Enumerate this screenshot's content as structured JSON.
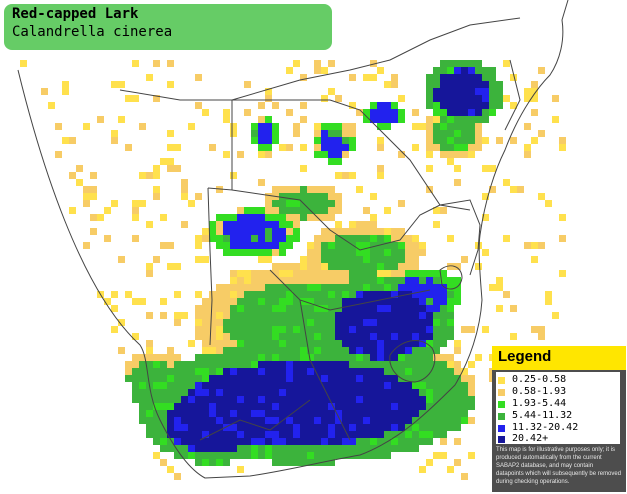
{
  "title": {
    "common_name": "Red-capped Lark",
    "scientific_name": "Calandrella cinerea"
  },
  "legend": {
    "heading": "Legend",
    "items": [
      {
        "label": "0.25-0.58",
        "color": "#ffe14d"
      },
      {
        "label": "0.58-1.93",
        "color": "#f7cc66"
      },
      {
        "label": "1.93-5.44",
        "color": "#33dd22"
      },
      {
        "label": "5.44-11.32",
        "color": "#3cb33c"
      },
      {
        "label": "11.32-20.42",
        "color": "#2222ee"
      },
      {
        "label": "20.42+",
        "color": "#16169a"
      }
    ],
    "disclaimer": "This map is for illustrative purposes only; it is produced automatically from the current SABAP2 database, and may contain datapoints which will subsequently be removed during checking operations."
  },
  "colors": {
    "title_box": "#66cc66",
    "legend_header": "#ffe600",
    "legend_panel": "#4d4d4d",
    "borders": "#444444"
  }
}
